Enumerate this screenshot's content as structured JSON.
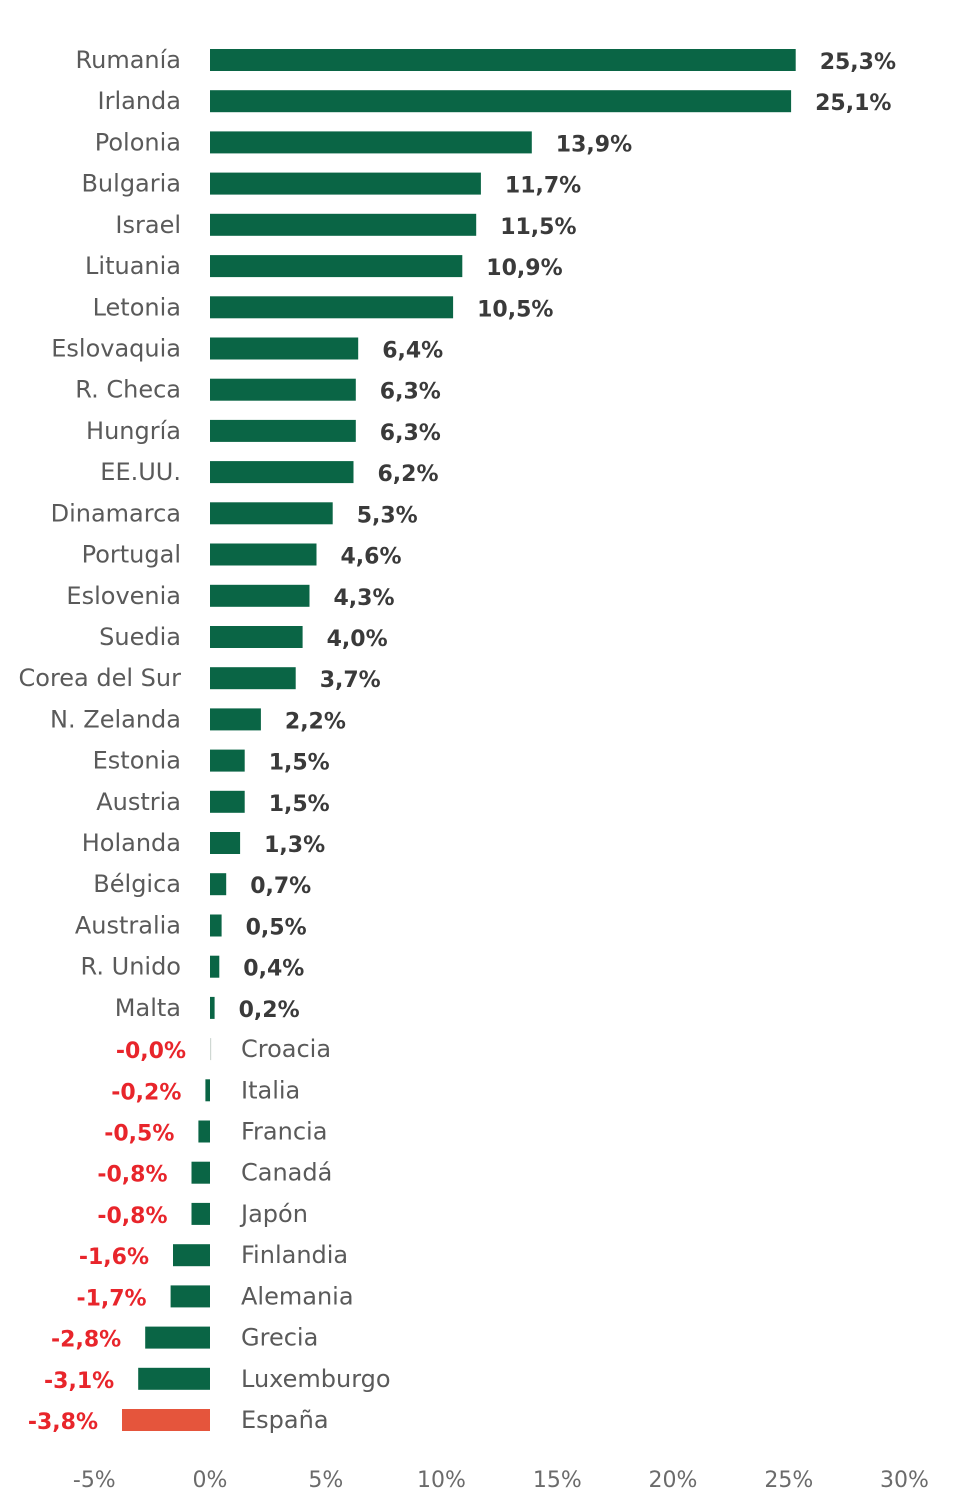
{
  "chart_data": {
    "type": "bar",
    "orientation": "horizontal",
    "colors": {
      "bar": "#0a6545",
      "highlight": "#e5553c",
      "negative_label": "#e8252b",
      "positive_label": "#3a3a3a"
    },
    "xlim": [
      -5,
      30
    ],
    "xticks": [
      "-5%",
      "0%",
      "5%",
      "10%",
      "15%",
      "20%",
      "25%",
      "30%"
    ],
    "xtick_values": [
      -5,
      0,
      5,
      10,
      15,
      20,
      25,
      30
    ],
    "highlight_category": "España",
    "grid": false,
    "bars": [
      {
        "category": "Rumanía",
        "value": 25.3,
        "label": "25,3%"
      },
      {
        "category": "Irlanda",
        "value": 25.1,
        "label": "25,1%"
      },
      {
        "category": "Polonia",
        "value": 13.9,
        "label": "13,9%"
      },
      {
        "category": "Bulgaria",
        "value": 11.7,
        "label": "11,7%"
      },
      {
        "category": "Israel",
        "value": 11.5,
        "label": "11,5%"
      },
      {
        "category": "Lituania",
        "value": 10.9,
        "label": "10,9%"
      },
      {
        "category": "Letonia",
        "value": 10.5,
        "label": "10,5%"
      },
      {
        "category": "Eslovaquia",
        "value": 6.4,
        "label": "6,4%"
      },
      {
        "category": "R. Checa",
        "value": 6.3,
        "label": "6,3%"
      },
      {
        "category": "Hungría",
        "value": 6.3,
        "label": "6,3%"
      },
      {
        "category": "EE.UU.",
        "value": 6.2,
        "label": "6,2%"
      },
      {
        "category": "Dinamarca",
        "value": 5.3,
        "label": "5,3%"
      },
      {
        "category": "Portugal",
        "value": 4.6,
        "label": "4,6%"
      },
      {
        "category": "Eslovenia",
        "value": 4.3,
        "label": "4,3%"
      },
      {
        "category": "Suedia",
        "value": 4.0,
        "label": "4,0%"
      },
      {
        "category": "Corea del Sur",
        "value": 3.7,
        "label": "3,7%"
      },
      {
        "category": "N. Zelanda",
        "value": 2.2,
        "label": "2,2%"
      },
      {
        "category": "Estonia",
        "value": 1.5,
        "label": "1,5%"
      },
      {
        "category": "Austria",
        "value": 1.5,
        "label": "1,5%"
      },
      {
        "category": "Holanda",
        "value": 1.3,
        "label": "1,3%"
      },
      {
        "category": "Bélgica",
        "value": 0.7,
        "label": "0,7%"
      },
      {
        "category": "Australia",
        "value": 0.5,
        "label": "0,5%"
      },
      {
        "category": "R. Unido",
        "value": 0.4,
        "label": "0,4%"
      },
      {
        "category": "Malta",
        "value": 0.2,
        "label": "0,2%"
      },
      {
        "category": "Croacia",
        "value": -0.0,
        "label": "-0,0%"
      },
      {
        "category": "Italia",
        "value": -0.2,
        "label": "-0,2%"
      },
      {
        "category": "Francia",
        "value": -0.5,
        "label": "-0,5%"
      },
      {
        "category": "Canadá",
        "value": -0.8,
        "label": "-0,8%"
      },
      {
        "category": "Japón",
        "value": -0.8,
        "label": "-0,8%"
      },
      {
        "category": "Finlandia",
        "value": -1.6,
        "label": "-1,6%"
      },
      {
        "category": "Alemania",
        "value": -1.7,
        "label": "-1,7%"
      },
      {
        "category": "Grecia",
        "value": -2.8,
        "label": "-2,8%"
      },
      {
        "category": "Luxemburgo",
        "value": -3.1,
        "label": "-3,1%"
      },
      {
        "category": "España",
        "value": -3.8,
        "label": "-3,8%"
      }
    ]
  }
}
